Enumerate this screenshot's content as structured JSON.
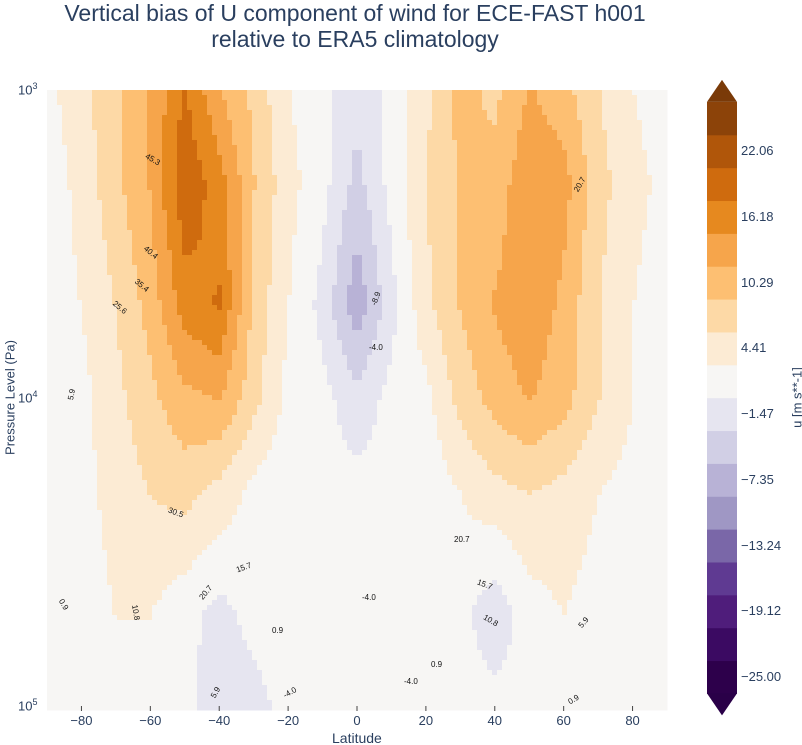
{
  "chart_data": {
    "type": "heatmap",
    "title": "Vertical bias of U component of wind for ECE-FAST h001",
    "subtitle": "relative to ERA5 climatology",
    "xlabel": "Latitude",
    "ylabel": "Pressure Level (Pa)",
    "colorbar_label": "u [m s**-1]",
    "xlim": [
      -90,
      90
    ],
    "ylim": [
      100000,
      1000
    ],
    "y_scale": "log",
    "x_ticks": [
      "−80",
      "−60",
      "−40",
      "−20",
      "0",
      "20",
      "40",
      "60",
      "80"
    ],
    "y_ticks": [
      {
        "base": "10",
        "exp": "3"
      },
      {
        "base": "10",
        "exp": "4"
      },
      {
        "base": "10",
        "exp": "5"
      }
    ],
    "colorbar_ticks": [
      "22.06",
      "16.18",
      "10.29",
      "4.41",
      "−1.47",
      "−7.35",
      "−13.24",
      "−19.12",
      "−25.00"
    ],
    "colorbar_tick_values": [
      22.06,
      16.18,
      10.29,
      4.41,
      -1.47,
      -7.35,
      -13.24,
      -19.12,
      -25.0
    ],
    "colors": [
      "#2d004b",
      "#3b0a62",
      "#4f1d7b",
      "#5f3a92",
      "#7a67a8",
      "#9f97c4",
      "#b8b2d6",
      "#d1cfe5",
      "#e6e5f0",
      "#f7f6f4",
      "#fcebd4",
      "#fdd9a6",
      "#fdbf72",
      "#f6a54b",
      "#e6891f",
      "#cf6b0e",
      "#b0560a",
      "#8c4309"
    ],
    "extend_colors": {
      "max": "#7a3a08",
      "min": "#2a0048"
    },
    "latitudes": [
      -90,
      -80,
      -70,
      -60,
      -50,
      -40,
      -30,
      -20,
      -10,
      0,
      10,
      20,
      30,
      40,
      50,
      60,
      70,
      80,
      90
    ],
    "pressure_levels": [
      1000,
      2000,
      5000,
      10000,
      20000,
      50000,
      100000
    ],
    "bias_values": [
      [
        2,
        5,
        8,
        12,
        18,
        12,
        8,
        3,
        1,
        -2,
        1,
        5,
        10,
        8,
        12,
        10,
        6,
        3,
        1
      ],
      [
        1,
        4,
        8,
        12,
        20,
        16,
        9,
        4,
        1,
        -4,
        1,
        6,
        9,
        10,
        14,
        13,
        7,
        4,
        2
      ],
      [
        1,
        3,
        6,
        10,
        16,
        18,
        8,
        3,
        -1,
        -8,
        -1,
        5,
        9,
        12,
        14,
        11,
        6,
        3,
        1
      ],
      [
        1,
        2,
        5,
        8,
        11,
        12,
        7,
        2,
        1,
        -2,
        1,
        2,
        7,
        10,
        12,
        10,
        6,
        3,
        1
      ],
      [
        1,
        2,
        4,
        6,
        7,
        5,
        2,
        1,
        1,
        1,
        1,
        1,
        3,
        5,
        6,
        5,
        3,
        2,
        1
      ],
      [
        1,
        1.5,
        3,
        3,
        1,
        -1,
        1,
        1.5,
        1,
        1,
        1,
        1,
        1,
        -2,
        1.5,
        3,
        1.5,
        1,
        1
      ],
      [
        1,
        1,
        1.5,
        1.5,
        1,
        -2,
        -1,
        1,
        1,
        1,
        1,
        1,
        1,
        1,
        1,
        1.5,
        1,
        1,
        1
      ]
    ],
    "contour_labels": [
      "45.3",
      "40.4",
      "35.4",
      "25.6",
      "5.9",
      "30.5",
      "20.7",
      "15.7",
      "10.8",
      "0.9",
      "0.9",
      "5.9",
      "-4.0",
      "-4.0",
      "-8.9",
      "-4.0",
      "-4.0",
      "20.7",
      "15.7",
      "10.8",
      "5.9",
      "0.9",
      "0.9",
      "20.7"
    ]
  }
}
